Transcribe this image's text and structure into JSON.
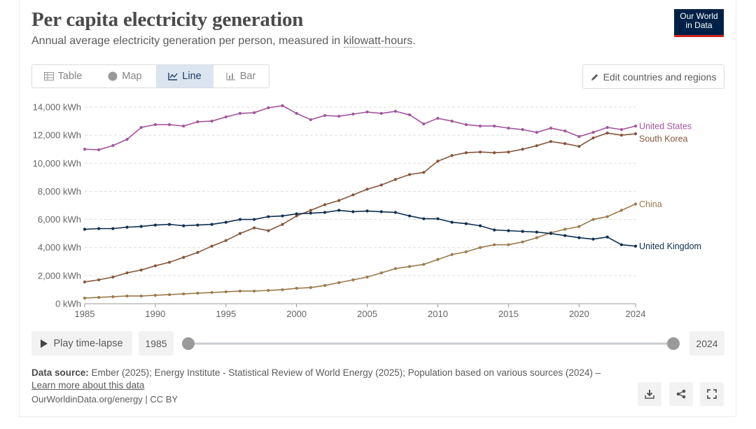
{
  "header": {
    "title": "Per capita electricity generation",
    "subtitle": [
      "Annual average electricity generation per person, measured in",
      "kilowatt-hours",
      "."
    ],
    "logo": [
      "Our World",
      "in Data"
    ]
  },
  "tabs": [
    "Table",
    "Map",
    "Line",
    "Bar"
  ],
  "edit_button": "Edit countries and regions",
  "timeline": {
    "play": "Play time-lapse",
    "start": "1985",
    "end": "2024"
  },
  "footer": {
    "source_label": "Data source:",
    "source_text": "Ember (2025); Energy Institute - Statistical Review of World Energy (2025); Population based on various sources (2024) –",
    "learn_more": "Learn more about this data",
    "license": "OurWorldinData.org/energy | CC BY"
  },
  "chart_data": {
    "type": "line",
    "x": [
      1985,
      1986,
      1987,
      1988,
      1989,
      1990,
      1991,
      1992,
      1993,
      1994,
      1995,
      1996,
      1997,
      1998,
      1999,
      2000,
      2001,
      2002,
      2003,
      2004,
      2005,
      2006,
      2007,
      2008,
      2009,
      2010,
      2011,
      2012,
      2013,
      2014,
      2015,
      2016,
      2017,
      2018,
      2019,
      2020,
      2021,
      2022,
      2023,
      2024
    ],
    "series": [
      {
        "name": "United States",
        "color": "#a2559c",
        "values": [
          11000,
          10960,
          11260,
          11700,
          12550,
          12750,
          12750,
          12650,
          12950,
          13000,
          13300,
          13550,
          13600,
          13950,
          14100,
          13550,
          13100,
          13400,
          13350,
          13500,
          13650,
          13550,
          13700,
          13450,
          12800,
          13200,
          13000,
          12750,
          12650,
          12650,
          12500,
          12400,
          12200,
          12500,
          12300,
          11900,
          12200,
          12550,
          12400,
          12650
        ]
      },
      {
        "name": "South Korea",
        "color": "#86553a",
        "values": [
          1550,
          1700,
          1900,
          2200,
          2400,
          2700,
          2950,
          3300,
          3650,
          4100,
          4500,
          5000,
          5400,
          5200,
          5650,
          6250,
          6650,
          7050,
          7350,
          7750,
          8150,
          8450,
          8850,
          9200,
          9350,
          10150,
          10550,
          10750,
          10800,
          10750,
          10800,
          11000,
          11250,
          11550,
          11400,
          11200,
          11800,
          12150,
          12000,
          12100
        ]
      },
      {
        "name": "China",
        "color": "#9b7a4b",
        "values": [
          400,
          450,
          500,
          550,
          550,
          600,
          650,
          700,
          750,
          800,
          850,
          900,
          900,
          950,
          1000,
          1100,
          1150,
          1300,
          1500,
          1700,
          1900,
          2200,
          2500,
          2650,
          2800,
          3150,
          3500,
          3700,
          4000,
          4200,
          4200,
          4400,
          4700,
          5050,
          5300,
          5500,
          6000,
          6200,
          6650,
          7100
        ]
      },
      {
        "name": "United Kingdom",
        "color": "#0e2f4f",
        "values": [
          5300,
          5350,
          5350,
          5450,
          5500,
          5600,
          5650,
          5550,
          5600,
          5650,
          5800,
          6000,
          6000,
          6200,
          6250,
          6400,
          6450,
          6500,
          6650,
          6550,
          6600,
          6550,
          6500,
          6250,
          6050,
          6050,
          5800,
          5700,
          5550,
          5250,
          5200,
          5150,
          5100,
          5000,
          4850,
          4700,
          4600,
          4750,
          4200,
          4100
        ]
      }
    ],
    "xlim": [
      1985,
      2024
    ],
    "xticks": [
      1985,
      1990,
      1995,
      2000,
      2005,
      2010,
      2015,
      2020,
      2024
    ],
    "ylim": [
      0,
      14000
    ],
    "yticks": [
      {
        "value": 0,
        "label": "0 kWh"
      },
      {
        "value": 2000,
        "label": "2,000 kWh"
      },
      {
        "value": 4000,
        "label": "4,000 kWh"
      },
      {
        "value": 6000,
        "label": "6,000 kWh"
      },
      {
        "value": 8000,
        "label": "8,000 kWh"
      },
      {
        "value": 10000,
        "label": "10,000 kWh"
      },
      {
        "value": 12000,
        "label": "12,000 kWh"
      },
      {
        "value": 14000,
        "label": "14,000 kWh"
      }
    ],
    "grid": true
  }
}
